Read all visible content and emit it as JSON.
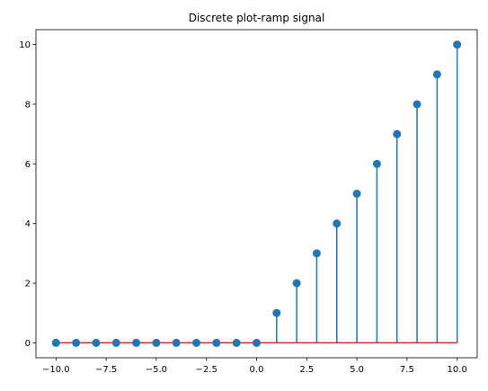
{
  "chart_data": {
    "type": "stem",
    "title": "Discrete plot-ramp signal",
    "xlabel": "",
    "ylabel": "",
    "x": [
      -10,
      -9,
      -8,
      -7,
      -6,
      -5,
      -4,
      -3,
      -2,
      -1,
      0,
      1,
      2,
      3,
      4,
      5,
      6,
      7,
      8,
      9,
      10
    ],
    "y": [
      0,
      0,
      0,
      0,
      0,
      0,
      0,
      0,
      0,
      0,
      0,
      1,
      2,
      3,
      4,
      5,
      6,
      7,
      8,
      9,
      10
    ],
    "xlim": [
      -11,
      11
    ],
    "ylim": [
      -0.5,
      10.5
    ],
    "xticks": [
      -10.0,
      -7.5,
      -5.0,
      -2.5,
      0.0,
      2.5,
      5.0,
      7.5,
      10.0
    ],
    "xtick_labels": [
      "−10.0",
      "−7.5",
      "−5.0",
      "−2.5",
      "0.0",
      "2.5",
      "5.0",
      "7.5",
      "10.0"
    ],
    "yticks": [
      0,
      2,
      4,
      6,
      8,
      10
    ],
    "ytick_labels": [
      "0",
      "2",
      "4",
      "6",
      "8",
      "10"
    ],
    "grid": false,
    "colors": {
      "stem": "#1f77b4",
      "marker": "#1f77b4",
      "baseline": "#d62728"
    }
  }
}
